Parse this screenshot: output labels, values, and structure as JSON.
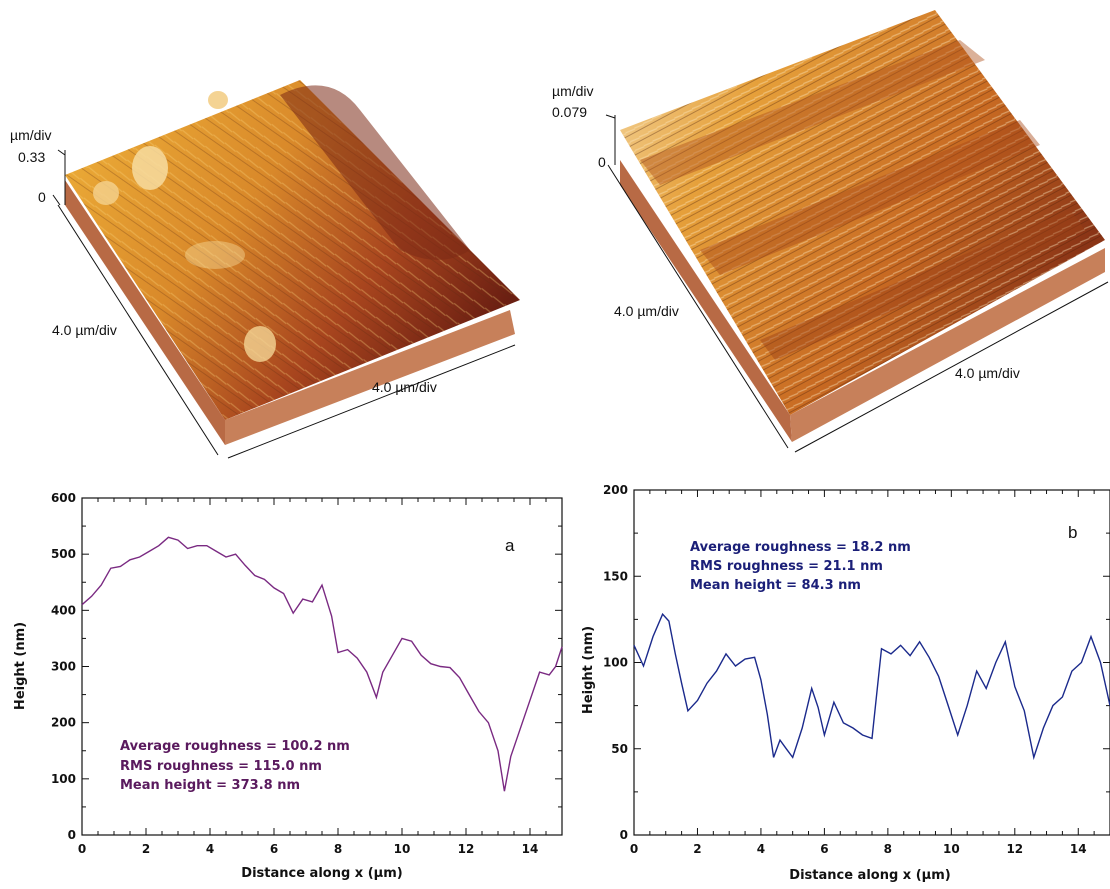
{
  "afm": [
    {
      "z_unit": "µm/div",
      "z_max": "0.33",
      "z_min": "0",
      "x_label": "4.0 µm/div",
      "y_label": "4.0 µm/div"
    },
    {
      "z_unit": "µm/div",
      "z_max": "0.079",
      "z_min": "0",
      "x_label": "4.0 µm/div",
      "y_label": "4.0 µm/div"
    }
  ],
  "chart_data": [
    {
      "type": "line",
      "panel_label": "a",
      "xlabel": "Distance along x (µm)",
      "ylabel": "Height (nm)",
      "xlim": [
        0,
        15
      ],
      "ylim": [
        0,
        600
      ],
      "x_ticks": [
        "0",
        "2",
        "4",
        "6",
        "8",
        "10",
        "12",
        "14"
      ],
      "y_ticks": [
        "0",
        "100",
        "200",
        "300",
        "400",
        "500",
        "600"
      ],
      "color": "#7a2a82",
      "annotations": [
        "Average roughness = 100.2 nm",
        "RMS roughness = 115.0 nm",
        "Mean height = 373.8 nm"
      ],
      "series": [
        {
          "x": [
            0,
            0.3,
            0.6,
            0.9,
            1.2,
            1.5,
            1.8,
            2.1,
            2.4,
            2.7,
            3.0,
            3.3,
            3.6,
            3.9,
            4.2,
            4.5,
            4.8,
            5.1,
            5.4,
            5.7,
            6.0,
            6.3,
            6.6,
            6.9,
            7.2,
            7.5,
            7.8,
            8.0,
            8.3,
            8.6,
            8.9,
            9.2,
            9.4,
            9.7,
            10.0,
            10.3,
            10.6,
            10.9,
            11.2,
            11.5,
            11.8,
            12.1,
            12.4,
            12.7,
            13.0,
            13.2,
            13.4,
            13.7,
            14.0,
            14.3,
            14.6,
            14.8,
            15.0
          ],
          "y": [
            410,
            425,
            445,
            475,
            478,
            490,
            495,
            505,
            515,
            530,
            525,
            510,
            515,
            515,
            505,
            495,
            500,
            480,
            462,
            455,
            440,
            430,
            395,
            420,
            415,
            445,
            390,
            325,
            330,
            315,
            290,
            245,
            290,
            320,
            350,
            345,
            320,
            305,
            300,
            298,
            280,
            250,
            220,
            200,
            150,
            78,
            140,
            190,
            240,
            290,
            285,
            300,
            335
          ]
        }
      ]
    },
    {
      "type": "line",
      "panel_label": "b",
      "xlabel": "Distance along x (µm)",
      "ylabel": "Height (nm)",
      "xlim": [
        0,
        15
      ],
      "ylim": [
        0,
        200
      ],
      "x_ticks": [
        "0",
        "2",
        "4",
        "6",
        "8",
        "10",
        "12",
        "14"
      ],
      "y_ticks": [
        "0",
        "50",
        "100",
        "150",
        "200"
      ],
      "color": "#1b2a8c",
      "annotations": [
        "Average roughness = 18.2 nm",
        "RMS roughness = 21.1 nm",
        "Mean height = 84.3 nm"
      ],
      "series": [
        {
          "x": [
            0,
            0.3,
            0.6,
            0.9,
            1.1,
            1.3,
            1.5,
            1.7,
            2.0,
            2.3,
            2.6,
            2.9,
            3.2,
            3.5,
            3.8,
            4.0,
            4.2,
            4.4,
            4.6,
            4.8,
            5.0,
            5.3,
            5.6,
            5.8,
            6.0,
            6.3,
            6.6,
            6.9,
            7.2,
            7.5,
            7.8,
            8.1,
            8.4,
            8.7,
            9.0,
            9.3,
            9.6,
            9.9,
            10.2,
            10.5,
            10.8,
            11.1,
            11.4,
            11.7,
            12.0,
            12.3,
            12.6,
            12.9,
            13.2,
            13.5,
            13.8,
            14.1,
            14.4,
            14.7,
            15.0
          ],
          "y": [
            110,
            98,
            115,
            128,
            124,
            105,
            88,
            72,
            78,
            88,
            95,
            105,
            98,
            102,
            103,
            90,
            70,
            45,
            55,
            50,
            45,
            62,
            85,
            74,
            58,
            77,
            65,
            62,
            58,
            56,
            108,
            105,
            110,
            104,
            112,
            103,
            92,
            75,
            58,
            75,
            95,
            85,
            100,
            112,
            86,
            72,
            45,
            62,
            75,
            80,
            95,
            100,
            115,
            100,
            75
          ]
        }
      ]
    }
  ]
}
